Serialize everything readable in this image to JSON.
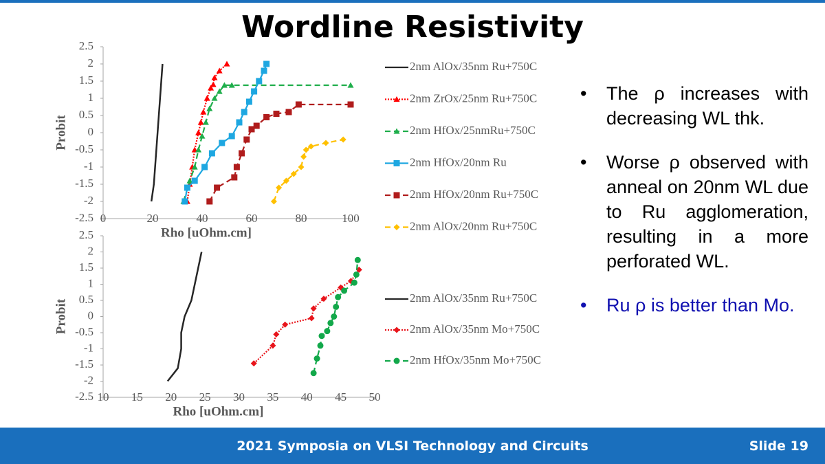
{
  "slide_title": "Wordline Resistivity",
  "chart_data": [
    {
      "type": "line",
      "xlabel": "Rho [uOhm.cm]",
      "ylabel": "Probit",
      "xlim": [
        0,
        100
      ],
      "xticks": [
        0,
        20,
        40,
        60,
        80,
        100
      ],
      "ylim": [
        -2.5,
        2.5
      ],
      "yticks": [
        -2.5,
        -2,
        -1.5,
        -1,
        -0.5,
        0,
        0.5,
        1,
        1.5,
        2,
        2.5
      ],
      "series": [
        {
          "name": "2nm AlOx/35nm Ru+750C",
          "color": "#262626",
          "line_style": "solid",
          "marker": "none",
          "x": [
            19.5,
            20.5,
            21,
            21.5,
            22,
            22.5,
            23,
            23.5,
            24
          ],
          "values": [
            -2,
            -1.5,
            -1,
            -0.5,
            0,
            0.5,
            1,
            1.5,
            2
          ]
        },
        {
          "name": "2nm ZrOx/25nm Ru+750C",
          "color": "#ff0000",
          "line_style": "dotted",
          "marker": "triangle",
          "x": [
            34,
            35,
            36,
            37,
            38.5,
            39.5,
            40.5,
            42,
            43.5,
            44.5,
            45,
            47,
            50
          ],
          "values": [
            -2,
            -1.5,
            -1,
            -0.5,
            0,
            0.3,
            0.6,
            1,
            1.3,
            1.4,
            1.6,
            1.8,
            2
          ]
        },
        {
          "name": "2nm HfOx/25nmRu+750C",
          "color": "#1fae4b",
          "line_style": "dashed",
          "marker": "triangle",
          "x": [
            32.5,
            35,
            37,
            38.5,
            40,
            41.5,
            43,
            45,
            47,
            49,
            52,
            100
          ],
          "values": [
            -2,
            -1.4,
            -1,
            -0.5,
            -0.1,
            0.3,
            0.7,
            1,
            1.2,
            1.38,
            1.38,
            1.38
          ]
        },
        {
          "name": "2nm HfOx/20nm Ru",
          "color": "#1ea7e1",
          "line_style": "solid",
          "marker": "square",
          "x": [
            33,
            34,
            37,
            41,
            44,
            48,
            52,
            55,
            57,
            59,
            61,
            63,
            65,
            66
          ],
          "values": [
            -2,
            -1.6,
            -1.4,
            -1,
            -0.6,
            -0.3,
            -0.1,
            0.3,
            0.6,
            0.9,
            1.2,
            1.5,
            1.8,
            2
          ]
        },
        {
          "name": "2nm HfOx/20nm Ru+750C",
          "color": "#b01c1c",
          "line_style": "dashed",
          "marker": "square",
          "x": [
            43,
            46,
            53,
            54,
            56,
            58,
            60,
            62,
            66,
            70,
            75,
            79,
            100
          ],
          "values": [
            -2,
            -1.6,
            -1.3,
            -1,
            -0.6,
            -0.2,
            0.1,
            0.2,
            0.45,
            0.55,
            0.6,
            0.82,
            0.82
          ]
        },
        {
          "name": "2nm AlOx/20nm Ru+750C",
          "color": "#ffc000",
          "line_style": "dashed",
          "marker": "diamond",
          "x": [
            69,
            71,
            74,
            77,
            80,
            81,
            82,
            84,
            90,
            97
          ],
          "values": [
            -2,
            -1.6,
            -1.4,
            -1.2,
            -1,
            -0.7,
            -0.5,
            -0.4,
            -0.3,
            -0.2
          ]
        }
      ]
    },
    {
      "type": "line",
      "xlabel": "Rho [uOhm.cm]",
      "ylabel": "Probit",
      "xlim": [
        10,
        50
      ],
      "xticks": [
        10,
        15,
        20,
        25,
        30,
        35,
        40,
        45,
        50
      ],
      "ylim": [
        -2.5,
        2.5
      ],
      "yticks": [
        -2.5,
        -2,
        -1.5,
        -1,
        -0.5,
        0,
        0.5,
        1,
        1.5,
        2,
        2.5
      ],
      "series": [
        {
          "name": "2nm AlOx/35nm Ru+750C",
          "color": "#262626",
          "line_style": "solid",
          "marker": "none",
          "x": [
            19.5,
            21,
            21.5,
            21.5,
            22,
            23,
            23.5,
            24,
            24.5
          ],
          "values": [
            -2,
            -1.6,
            -1,
            -0.5,
            0,
            0.5,
            1,
            1.5,
            2
          ]
        },
        {
          "name": "2nm AlOx/35nm Mo+750C",
          "color": "#e8141b",
          "line_style": "dotted",
          "marker": "diamond",
          "x": [
            32.2,
            35,
            35.5,
            36.8,
            40.7,
            41,
            42.5,
            45,
            46.5,
            47.7
          ],
          "values": [
            -1.45,
            -0.9,
            -0.55,
            -0.25,
            -0.05,
            0.25,
            0.55,
            0.9,
            1.1,
            1.45
          ]
        },
        {
          "name": "2nm HfOx/35nm Mo+750C",
          "color": "#12a84a",
          "line_style": "dashed",
          "marker": "circle",
          "x": [
            41,
            41.5,
            42,
            42.2,
            43,
            43.5,
            44,
            44.3,
            44.6,
            45.5,
            47,
            47.3,
            47.5
          ],
          "values": [
            -1.75,
            -1.3,
            -0.9,
            -0.6,
            -0.45,
            -0.2,
            0,
            0.3,
            0.6,
            0.8,
            1.05,
            1.3,
            1.75
          ]
        }
      ]
    }
  ],
  "bullets": [
    {
      "text": "The ρ increases with decreasing WL thk.",
      "color": "#000000"
    },
    {
      "text": "Worse ρ observed with anneal on 20nm WL due to Ru agglomeration, resulting in a more perforated WL.",
      "color": "#000000"
    },
    {
      "text": "Ru ρ is better than Mo.",
      "color": "#1010b0"
    }
  ],
  "footer": {
    "text": "2021 Symposia on VLSI Technology and Circuits",
    "slide": "Slide 19"
  }
}
